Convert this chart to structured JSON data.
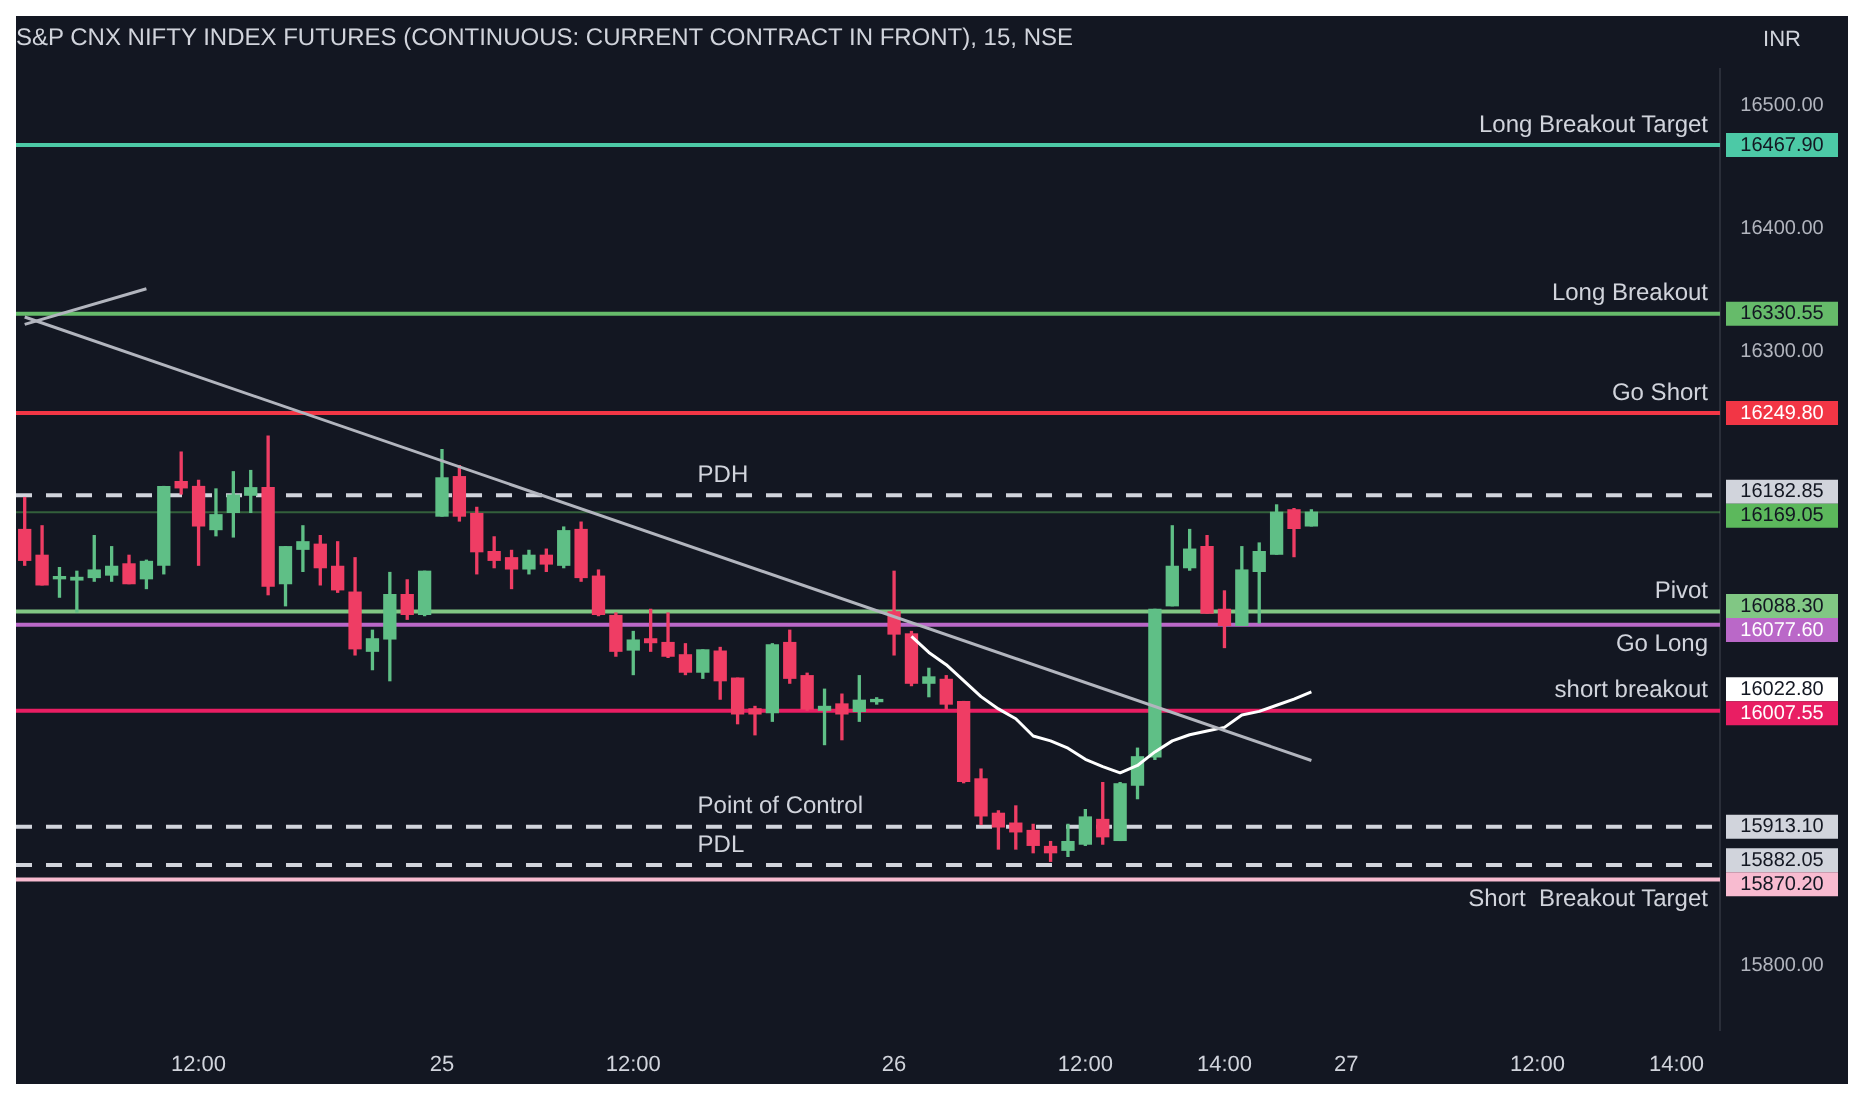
{
  "chart_data": {
    "type": "candlestick",
    "title": "S&P CNX NIFTY INDEX FUTURES (CONTINUOUS: CURRENT CONTRACT IN FRONT), 15, NSE",
    "ylabel": "INR",
    "categories": [
      null,
      null,
      null,
      null,
      null,
      null,
      null,
      null,
      null,
      null,
      "12:00",
      null,
      null,
      null,
      null,
      null,
      null,
      null,
      null,
      null,
      null,
      null,
      null,
      null,
      "25",
      null,
      null,
      null,
      null,
      null,
      null,
      null,
      null,
      null,
      null,
      "12:00",
      null,
      null,
      null,
      null,
      null,
      null,
      null,
      null,
      null,
      null,
      null,
      null,
      null,
      null,
      "26",
      null,
      null,
      null,
      null,
      null,
      null,
      null,
      null,
      null,
      null,
      "12:00",
      null,
      null,
      null,
      null,
      null,
      null,
      null,
      "14:00",
      null,
      null,
      null,
      null,
      null,
      null,
      "27",
      null,
      null,
      null,
      null,
      null,
      null,
      null,
      null,
      null,
      null,
      "12:00",
      null,
      null,
      null,
      null,
      null,
      null,
      null,
      "14:00",
      null,
      null
    ],
    "ohlc": [
      [
        16155,
        16181,
        16126,
        16130
      ],
      [
        16134,
        16158,
        16110,
        16110
      ],
      [
        16115,
        16124,
        16100,
        16116
      ],
      [
        16114,
        16121,
        16088,
        16116
      ],
      [
        16116,
        16150,
        16113,
        16122
      ],
      [
        16118,
        16141,
        16113,
        16125
      ],
      [
        16127,
        16134,
        16111,
        16111
      ],
      [
        16115,
        16130,
        16107,
        16129
      ],
      [
        16126,
        16190,
        16119,
        16190
      ],
      [
        16194,
        16218,
        16184,
        16189
      ],
      [
        16190,
        16195,
        16126,
        16158
      ],
      [
        16155,
        16188,
        16150,
        16167
      ],
      [
        16169,
        16202,
        16149,
        16183
      ],
      [
        16183,
        16203,
        16169,
        16189
      ],
      [
        16189,
        16231,
        16102,
        16109
      ],
      [
        16111,
        16141,
        16093,
        16141
      ],
      [
        16139,
        16158,
        16121,
        16145
      ],
      [
        16143,
        16150,
        16110,
        16124
      ],
      [
        16125,
        16145,
        16104,
        16106
      ],
      [
        16104,
        16132,
        16053,
        16058
      ],
      [
        16056,
        16073,
        16041,
        16066
      ],
      [
        16066,
        16120,
        16032,
        16102
      ],
      [
        16102,
        16114,
        16082,
        16086
      ],
      [
        16086,
        16121,
        16085,
        16121
      ],
      [
        16166,
        16220,
        16166,
        16197
      ],
      [
        16198,
        16207,
        16162,
        16166
      ],
      [
        16168,
        16173,
        16119,
        16137
      ],
      [
        16137,
        16149,
        16124,
        16130
      ],
      [
        16132,
        16138,
        16107,
        16123
      ],
      [
        16123,
        16138,
        16119,
        16134
      ],
      [
        16134,
        16139,
        16121,
        16127
      ],
      [
        16126,
        16157,
        16124,
        16154
      ],
      [
        16155,
        16161,
        16113,
        16116
      ],
      [
        16117,
        16122,
        16085,
        16086
      ],
      [
        16085,
        16087,
        16052,
        16056
      ],
      [
        16057,
        16072,
        16037,
        16065
      ],
      [
        16066,
        16090,
        16056,
        16063
      ],
      [
        16063,
        16087,
        16051,
        16052
      ],
      [
        16053,
        16062,
        16037,
        16039
      ],
      [
        16039,
        16057,
        16034,
        16057
      ],
      [
        16056,
        16059,
        16017,
        16032
      ],
      [
        16034,
        16034,
        15997,
        16005
      ],
      [
        16009,
        16011,
        15988,
        16005
      ],
      [
        16006,
        16062,
        15999,
        16061
      ],
      [
        16063,
        16073,
        16030,
        16034
      ],
      [
        16036,
        16038,
        16008,
        16009
      ],
      [
        16008,
        16025,
        15980,
        16011
      ],
      [
        16013,
        16021,
        15984,
        16005
      ],
      [
        16007,
        16036,
        15999,
        16016
      ],
      [
        16015,
        16018,
        16013,
        16016
      ],
      [
        16088,
        16121,
        16053,
        16070
      ],
      [
        16070,
        16072,
        16028,
        16030
      ],
      [
        16030,
        16042,
        16019,
        16035
      ],
      [
        16033,
        16036,
        16009,
        16013
      ],
      [
        16015,
        16015,
        15949,
        15950
      ],
      [
        15952,
        15960,
        15915,
        15922
      ],
      [
        15924,
        15926,
        15895,
        15913
      ],
      [
        15916,
        15930,
        15895,
        15909
      ],
      [
        15910,
        15915,
        15892,
        15898
      ],
      [
        15897,
        15901,
        15885,
        15892
      ],
      [
        15894,
        15915,
        15889,
        15901
      ],
      [
        15899,
        15927,
        15898,
        15921
      ],
      [
        15919,
        15949,
        15899,
        15905
      ],
      [
        15902,
        15949,
        15902,
        15948
      ],
      [
        15947,
        15977,
        15936,
        15970
      ],
      [
        15970,
        16090,
        15968,
        16090
      ],
      [
        16093,
        16158,
        16093,
        16125
      ],
      [
        16124,
        16155,
        16122,
        16139
      ],
      [
        16141,
        16150,
        16087,
        16087
      ],
      [
        16090,
        16105,
        16059,
        16077
      ],
      [
        16077,
        16141,
        16077,
        16122
      ],
      [
        16121,
        16144,
        16079,
        16137
      ],
      [
        16135,
        16175,
        16135,
        16169
      ],
      [
        16171,
        16172,
        16133,
        16156
      ],
      [
        16158,
        16171,
        16158,
        16169.05
      ],
      null,
      null,
      null,
      null,
      null,
      null,
      null,
      null,
      null,
      null,
      null,
      null,
      null,
      null,
      null,
      null,
      null,
      null,
      null,
      null,
      null,
      null,
      null
    ],
    "series": [
      {
        "type": "line",
        "color": "#b2b5be",
        "values": [
          16328,
          null,
          null,
          null,
          null,
          null,
          null,
          null,
          null,
          null,
          null,
          null,
          null,
          null,
          null,
          null,
          null,
          null,
          null,
          null,
          null,
          null,
          null,
          null,
          null,
          null,
          null,
          null,
          null,
          null,
          null,
          null,
          null,
          null,
          null,
          null,
          null,
          null,
          null,
          null,
          null,
          null,
          null,
          null,
          null,
          null,
          null,
          null,
          null,
          null,
          null,
          null,
          null,
          null,
          null,
          null,
          null,
          null,
          null,
          null,
          null,
          null,
          null,
          null,
          null,
          null,
          null,
          null,
          null,
          null,
          null,
          null,
          null,
          null,
          15967,
          null,
          null,
          null,
          null,
          null,
          null,
          null,
          null,
          null,
          null,
          null,
          null,
          null,
          null,
          null,
          null,
          null,
          null,
          null,
          null,
          null,
          null,
          null
        ]
      },
      {
        "type": "line",
        "color": "#b2b5be",
        "values": [
          16322,
          null,
          null,
          null,
          null,
          null,
          null,
          16351,
          null,
          null,
          null,
          null,
          null,
          null,
          null,
          null,
          null,
          null,
          null,
          null,
          null,
          null,
          null,
          null,
          null,
          null,
          null,
          null,
          null,
          null,
          null,
          null,
          null,
          null,
          null,
          null,
          null,
          null,
          null,
          null,
          null,
          null,
          null,
          null,
          null,
          null,
          null,
          null,
          null,
          null,
          null,
          null,
          null,
          null,
          null,
          null,
          null,
          null,
          null,
          null,
          null,
          null,
          null,
          null,
          null,
          null,
          null,
          null,
          null,
          null,
          null,
          null,
          null,
          null,
          null,
          null,
          null,
          null,
          null,
          null,
          null,
          null,
          null,
          null,
          null,
          null,
          null,
          null,
          null,
          null,
          null,
          null,
          null,
          null,
          null,
          null,
          null,
          null
        ]
      },
      {
        "type": "line",
        "color": "#ffffff",
        "values": [
          null,
          null,
          null,
          null,
          null,
          null,
          null,
          null,
          null,
          null,
          null,
          null,
          null,
          null,
          null,
          null,
          null,
          null,
          null,
          null,
          null,
          null,
          null,
          null,
          null,
          null,
          null,
          null,
          null,
          null,
          null,
          null,
          null,
          null,
          null,
          null,
          null,
          null,
          null,
          null,
          null,
          null,
          null,
          null,
          null,
          null,
          null,
          null,
          null,
          null,
          null,
          16068,
          16055,
          16045,
          16032,
          16019,
          16009,
          16001,
          15987,
          15983,
          15977,
          15968,
          15962,
          15957,
          15963,
          15974,
          15983,
          15988,
          15991,
          15994,
          16004,
          16007,
          16012,
          16017,
          16022.8,
          null,
          null,
          null,
          null,
          null,
          null,
          null,
          null,
          null,
          null,
          null,
          null,
          null,
          null,
          null,
          null,
          null,
          null,
          null,
          null,
          null,
          null,
          null
        ]
      }
    ],
    "ylim": [
      15748,
      16530
    ],
    "yticks": [
      {
        "value": 15800,
        "label": "15800.00"
      },
      {
        "value": 16300,
        "label": "16300.00"
      },
      {
        "value": 16400,
        "label": "16400.00"
      },
      {
        "value": 16500,
        "label": "16500.00"
      },
      {
        "value": 16467.9,
        "label": "16467.90"
      },
      {
        "value": 16330.55,
        "label": "16330.55"
      },
      {
        "value": 16249.8,
        "label": "16249.80"
      },
      {
        "value": 16182.85,
        "label": "16182.85"
      },
      {
        "value": 16169.05,
        "label": "16169.05"
      },
      {
        "value": 16088.3,
        "label": "16088.30"
      },
      {
        "value": 16077.6,
        "label": "16077.60"
      },
      {
        "value": 16022.8,
        "label": "16022.80"
      },
      {
        "value": 16007.55,
        "label": "16007.55"
      },
      {
        "value": 15913.1,
        "label": "15913.10"
      },
      {
        "value": 15882.05,
        "label": "15882.05"
      },
      {
        "value": 15870.2,
        "label": "15870.20"
      }
    ],
    "ref_lines": [
      {
        "axis": "y",
        "value": 16467.9,
        "label": "Long Breakout Target",
        "color": "#4cc9a6"
      },
      {
        "axis": "y",
        "value": 16330.55,
        "label": "Long Breakout",
        "color": "#66bb6a"
      },
      {
        "axis": "y",
        "value": 16249.8,
        "label": "Go Short",
        "color": "#f23645"
      },
      {
        "axis": "y",
        "value": 16182.85,
        "label": "PDH",
        "color": "#d1d4dc",
        "line_style": "dashed"
      },
      {
        "axis": "y",
        "value": 16169.05,
        "label": null,
        "color": "#5cb85c"
      },
      {
        "axis": "y",
        "value": 16088.3,
        "label": "Pivot",
        "color": "#81c784"
      },
      {
        "axis": "y",
        "value": 16077.6,
        "label": "Go Long",
        "color": "#ba68c8"
      },
      {
        "axis": "y",
        "value": 16007.55,
        "label": "short breakout",
        "color": "#e91e63"
      },
      {
        "axis": "y",
        "value": 15913.1,
        "label": "Point of Control",
        "color": "#d1d4dc",
        "line_style": "dashed"
      },
      {
        "axis": "y",
        "value": 15882.05,
        "label": "PDL",
        "color": "#d1d4dc",
        "line_style": "dashed"
      },
      {
        "axis": "y",
        "value": 15870.2,
        "label": "Short  Breakout Target",
        "color": "#f8bbd0"
      }
    ]
  }
}
